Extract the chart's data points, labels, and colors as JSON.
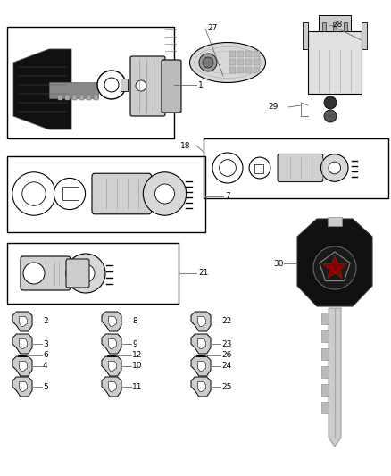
{
  "bg_color": "#ffffff",
  "fig_width": 4.38,
  "fig_height": 5.33,
  "dpi": 100,
  "font_size": 6.5,
  "line_color": "#333333",
  "leader_color": "#666666"
}
